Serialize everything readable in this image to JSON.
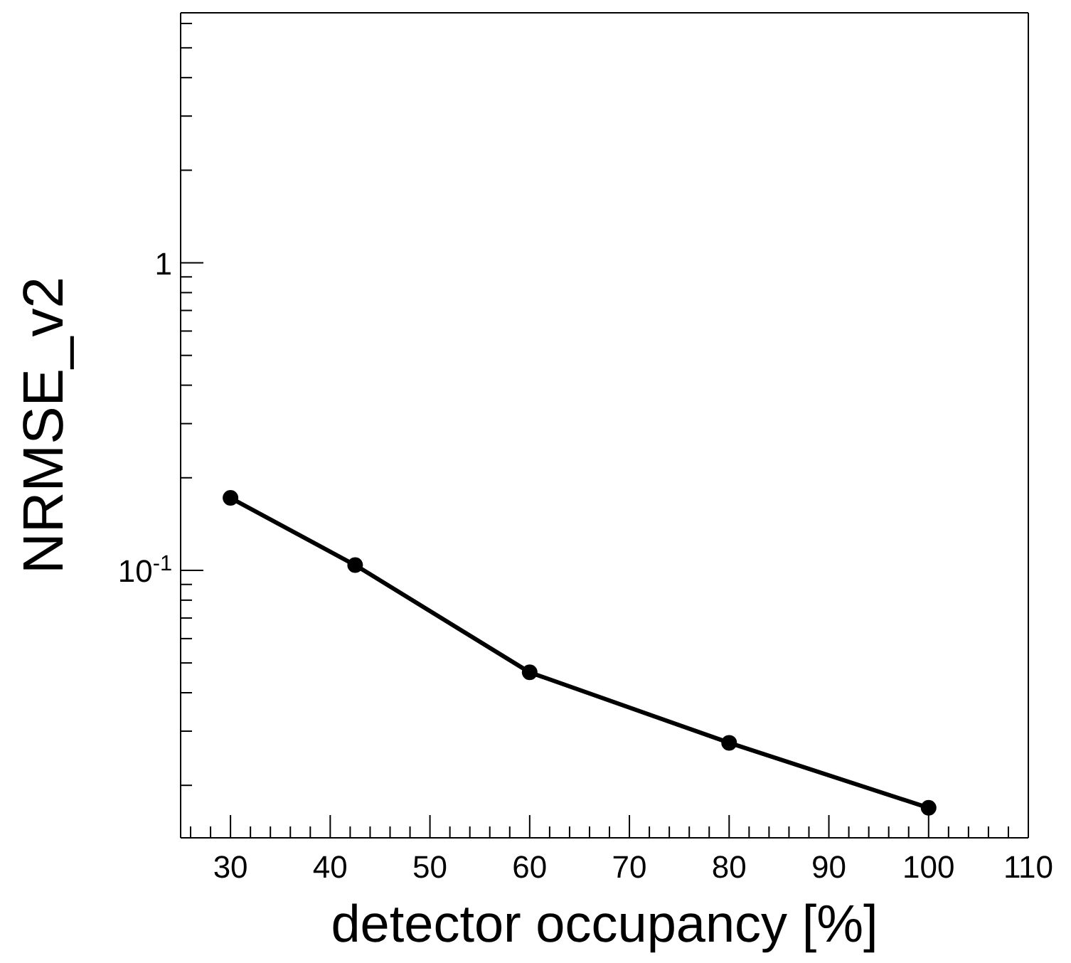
{
  "chart_data": {
    "type": "line",
    "xlabel": "detector occupancy [%]",
    "ylabel": "NRMSE_v2",
    "x": [
      30,
      42.5,
      60,
      80,
      100
    ],
    "series": [
      {
        "color": "#000000",
        "values": [
          0.172,
          0.104,
          0.0466,
          0.0275,
          0.0169
        ]
      }
    ],
    "xlim": [
      25,
      110
    ],
    "ylim": [
      0.0135,
      6.5
    ],
    "xticks": [
      {
        "value": 26,
        "label": null
      },
      {
        "value": 28,
        "label": null
      },
      30,
      {
        "value": 32,
        "label": null
      },
      {
        "value": 34,
        "label": null
      },
      {
        "value": 36,
        "label": null
      },
      {
        "value": 38,
        "label": null
      },
      40,
      {
        "value": 42,
        "label": null
      },
      {
        "value": 44,
        "label": null
      },
      {
        "value": 46,
        "label": null
      },
      {
        "value": 48,
        "label": null
      },
      50,
      {
        "value": 52,
        "label": null
      },
      {
        "value": 54,
        "label": null
      },
      {
        "value": 56,
        "label": null
      },
      {
        "value": 58,
        "label": null
      },
      60,
      {
        "value": 62,
        "label": null
      },
      {
        "value": 64,
        "label": null
      },
      {
        "value": 66,
        "label": null
      },
      {
        "value": 68,
        "label": null
      },
      70,
      {
        "value": 72,
        "label": null
      },
      {
        "value": 74,
        "label": null
      },
      {
        "value": 76,
        "label": null
      },
      {
        "value": 78,
        "label": null
      },
      80,
      {
        "value": 82,
        "label": null
      },
      {
        "value": 84,
        "label": null
      },
      {
        "value": 86,
        "label": null
      },
      {
        "value": 88,
        "label": null
      },
      90,
      {
        "value": 92,
        "label": null
      },
      {
        "value": 94,
        "label": null
      },
      {
        "value": 96,
        "label": null
      },
      {
        "value": 98,
        "label": null
      },
      100,
      {
        "value": 102,
        "label": null
      },
      {
        "value": 104,
        "label": null
      },
      {
        "value": 106,
        "label": null
      },
      {
        "value": 108,
        "label": null
      },
      110
    ],
    "yticks": [
      {
        "value": 0.02,
        "label": null
      },
      {
        "value": 0.03,
        "label": null
      },
      {
        "value": 0.04,
        "label": null
      },
      {
        "value": 0.05,
        "label": null
      },
      {
        "value": 0.06,
        "label": null
      },
      {
        "value": 0.07,
        "label": null
      },
      {
        "value": 0.08,
        "label": null
      },
      {
        "value": 0.09,
        "label": null
      },
      {
        "value": 0.1,
        "label": "10$^{-1}$"
      },
      {
        "value": 0.2,
        "label": null
      },
      {
        "value": 0.3,
        "label": null
      },
      {
        "value": 0.4,
        "label": null
      },
      {
        "value": 0.5,
        "label": null
      },
      {
        "value": 0.6,
        "label": null
      },
      {
        "value": 0.7,
        "label": null
      },
      {
        "value": 0.8,
        "label": null
      },
      {
        "value": 0.9,
        "label": null
      },
      1,
      {
        "value": 2,
        "label": null
      },
      {
        "value": 3,
        "label": null
      },
      {
        "value": 4,
        "label": null
      },
      {
        "value": 5,
        "label": null
      },
      {
        "value": 6,
        "label": null
      }
    ],
    "log": "y",
    "marker": "circle",
    "line_style": "solid"
  }
}
